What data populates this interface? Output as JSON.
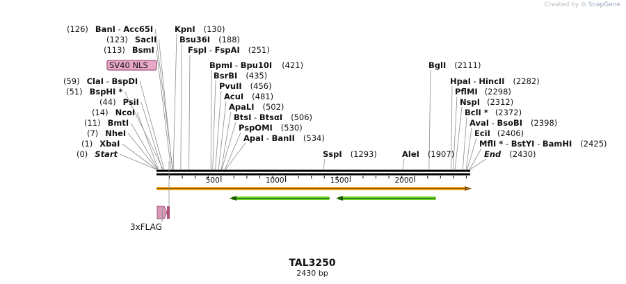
{
  "credit": {
    "prefix": "Created by",
    "brand": "SnapGene"
  },
  "plasmid": {
    "name": "TAL3250",
    "length_label": "2430 bp",
    "length": 2430
  },
  "axis": {
    "ticks": [
      500,
      1000,
      1500,
      2000
    ]
  },
  "sites": [
    {
      "pos": "(126)",
      "parts": [
        "BanI",
        " - ",
        "Acc65I"
      ],
      "bp": 126
    },
    {
      "parts": [
        "KpnI"
      ],
      "post": "(130)",
      "bp": 130
    },
    {
      "pos": "(123)",
      "parts": [
        "SacII"
      ],
      "bp": 123
    },
    {
      "parts": [
        "Bsu36I"
      ],
      "post": "(188)",
      "bp": 188
    },
    {
      "pos": "(113)",
      "parts": [
        "BsmI"
      ],
      "bp": 113
    },
    {
      "parts": [
        "FspI",
        " - ",
        "FspAI"
      ],
      "post": "(251)",
      "bp": 251
    },
    {
      "parts": [
        "BpmI",
        " - ",
        "Bpu10I"
      ],
      "post": "(421)",
      "bp": 421
    },
    {
      "parts": [
        "BsrBI"
      ],
      "post": "(435)",
      "bp": 435
    },
    {
      "parts": [
        "PvuII"
      ],
      "post": "(456)",
      "bp": 456
    },
    {
      "parts": [
        "AcuI"
      ],
      "post": "(481)",
      "bp": 481
    },
    {
      "parts": [
        "ApaLI"
      ],
      "post": "(502)",
      "bp": 502
    },
    {
      "parts": [
        "BtsI",
        " - ",
        "BtsαI"
      ],
      "post": "(506)",
      "bp": 506
    },
    {
      "parts": [
        "PspOMI"
      ],
      "post": "(530)",
      "bp": 530
    },
    {
      "parts": [
        "ApaI",
        " - ",
        "BanII"
      ],
      "post": "(534)",
      "bp": 534
    },
    {
      "pos": "(59)",
      "parts": [
        "ClaI",
        " - ",
        "BspDI"
      ],
      "bp": 59
    },
    {
      "pos": "(51)",
      "parts": [
        "BspHI *"
      ],
      "bp": 51
    },
    {
      "pos": "(44)",
      "parts": [
        "PsiI"
      ],
      "bp": 44
    },
    {
      "pos": "(14)",
      "parts": [
        "NcoI"
      ],
      "bp": 14
    },
    {
      "pos": "(11)",
      "parts": [
        "BmtI"
      ],
      "bp": 11
    },
    {
      "pos": "(7)",
      "parts": [
        "NheI"
      ],
      "bp": 7
    },
    {
      "pos": "(1)",
      "parts": [
        "XbaI"
      ],
      "bp": 1
    },
    {
      "pos": "(0)",
      "parts": [
        "Start"
      ],
      "italic": true,
      "bp": 0
    },
    {
      "parts": [
        "SspI"
      ],
      "post": "(1293)",
      "bp": 1293
    },
    {
      "parts": [
        "AleI"
      ],
      "post": "(1907)",
      "bp": 1907
    },
    {
      "parts": [
        "BglI"
      ],
      "post": "(2111)",
      "bp": 2111
    },
    {
      "parts": [
        "HpaI",
        " - ",
        "HincII"
      ],
      "post": "(2282)",
      "bp": 2282
    },
    {
      "parts": [
        "PflMI"
      ],
      "post": "(2298)",
      "bp": 2298
    },
    {
      "parts": [
        "NspI"
      ],
      "post": "(2312)",
      "bp": 2312
    },
    {
      "parts": [
        "BclI *"
      ],
      "post": "(2372)",
      "bp": 2372
    },
    {
      "parts": [
        "AvaI",
        " - ",
        "BsoBI"
      ],
      "post": "(2398)",
      "bp": 2398
    },
    {
      "parts": [
        "EciI"
      ],
      "post": "(2406)",
      "bp": 2406
    },
    {
      "parts": [
        "MflI *",
        " - ",
        "BstYI",
        " - ",
        "BamHI"
      ],
      "post": "(2425)",
      "bp": 2425
    },
    {
      "parts": [
        "End"
      ],
      "italic": true,
      "post": "(2430)",
      "bp": 2430
    }
  ],
  "features": {
    "sv40_label": "SV40 NLS",
    "flag_label": "3xFLAG",
    "colors": {
      "sv40": "#e8a9c8",
      "flag": "#b05078",
      "orange": "#f5a623",
      "green": "#6ad02a"
    }
  }
}
